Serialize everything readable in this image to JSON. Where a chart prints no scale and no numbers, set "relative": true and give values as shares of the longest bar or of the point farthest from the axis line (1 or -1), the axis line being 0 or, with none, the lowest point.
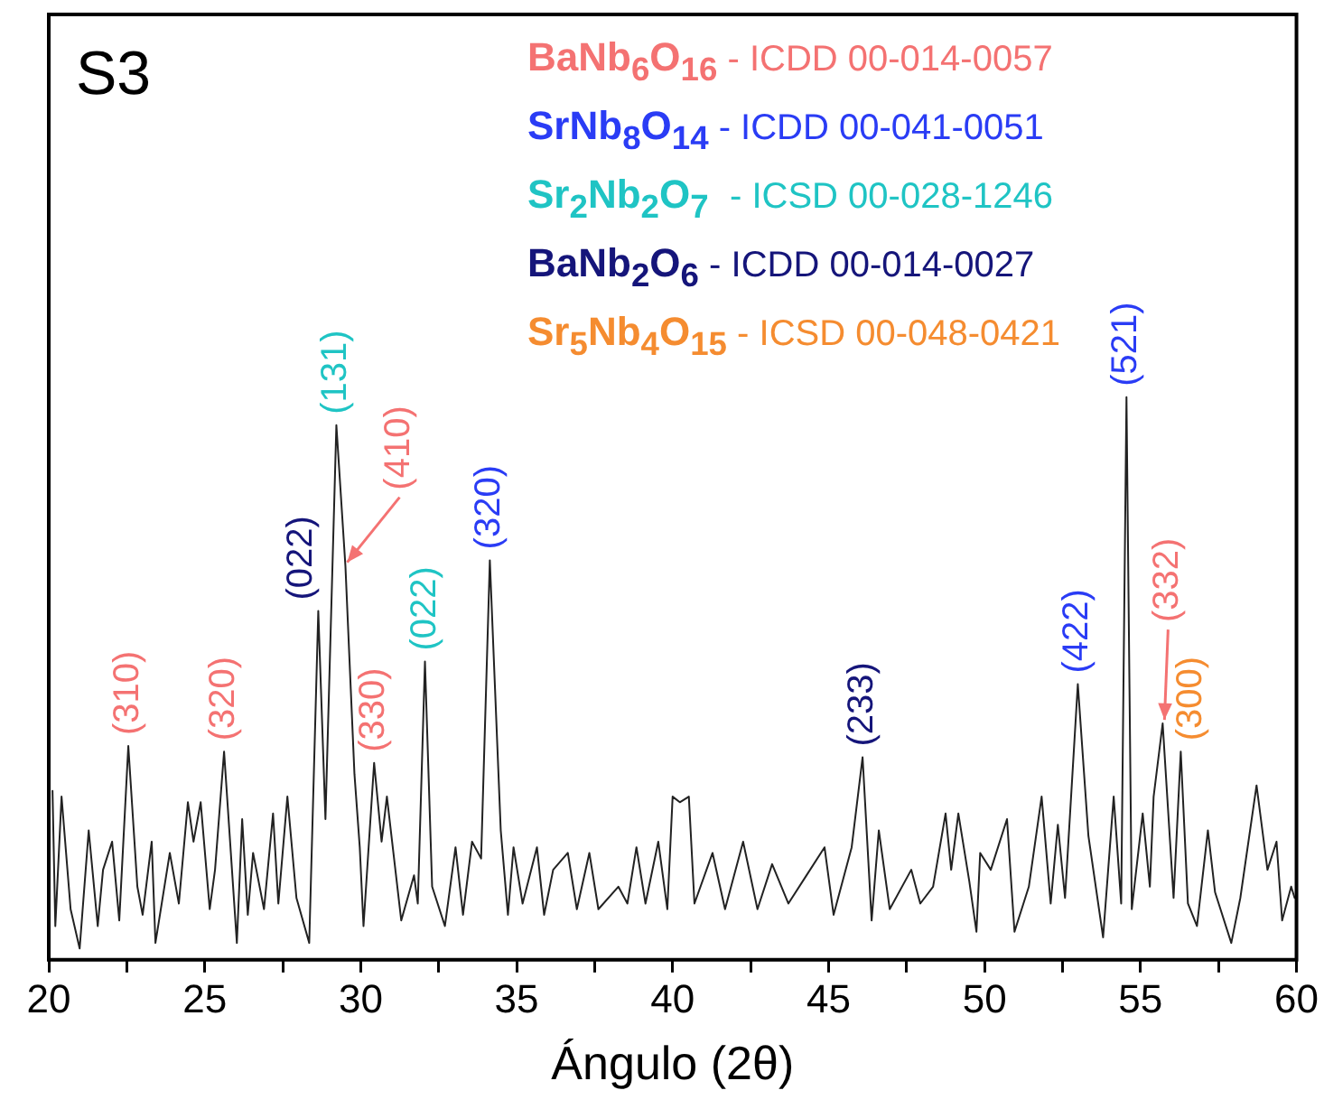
{
  "chart_data": {
    "type": "line",
    "relative": true,
    "xlabel": "Ángulo (2θ)",
    "color": "#222222",
    "marker": "none",
    "grid": false,
    "legend": false,
    "tick_labels": "x",
    "xlim": [
      20,
      60
    ],
    "xticks": [
      20,
      {
        "value": 22.5,
        "label": null
      },
      25,
      {
        "value": 27.5,
        "label": null
      },
      30,
      {
        "value": 32.5,
        "label": null
      },
      35,
      {
        "value": 37.5,
        "label": null
      },
      40,
      {
        "value": 42.5,
        "label": null
      },
      45,
      {
        "value": 47.5,
        "label": null
      },
      50,
      {
        "value": 52.5,
        "label": null
      },
      55,
      {
        "value": 57.5,
        "label": null
      },
      60
    ],
    "x": [
      20.12,
      20.21,
      20.41,
      20.7,
      20.99,
      21.28,
      21.57,
      21.74,
      22.03,
      22.26,
      22.55,
      22.84,
      23.01,
      23.3,
      23.42,
      23.88,
      24.17,
      24.46,
      24.64,
      24.87,
      25.16,
      25.33,
      25.62,
      26.03,
      26.2,
      26.38,
      26.55,
      26.9,
      27.19,
      27.36,
      27.65,
      27.94,
      28.35,
      28.64,
      28.87,
      29.22,
      29.51,
      29.8,
      29.97,
      30.09,
      30.43,
      30.67,
      30.84,
      31.3,
      31.71,
      31.83,
      32.06,
      32.29,
      32.7,
      33.04,
      33.28,
      33.57,
      33.86,
      34.14,
      34.49,
      34.72,
      34.9,
      35.19,
      35.65,
      35.88,
      36.17,
      36.64,
      36.93,
      37.33,
      37.62,
      38.26,
      38.55,
      38.84,
      39.13,
      39.54,
      39.83,
      40.0,
      40.23,
      40.52,
      40.7,
      41.28,
      41.68,
      42.26,
      42.72,
      43.19,
      43.71,
      44.29,
      44.87,
      45.16,
      45.74,
      46.09,
      46.38,
      46.61,
      46.96,
      47.65,
      47.94,
      48.35,
      48.75,
      48.93,
      49.16,
      49.51,
      49.74,
      49.86,
      50.2,
      50.72,
      50.96,
      51.42,
      51.83,
      52.12,
      52.35,
      52.58,
      52.99,
      53.33,
      53.8,
      54.14,
      54.38,
      54.55,
      54.72,
      55.07,
      55.3,
      55.42,
      55.71,
      56.06,
      56.29,
      56.52,
      56.81,
      57.16,
      57.39,
      57.91,
      58.2,
      58.72,
      59.07,
      59.36,
      59.54,
      59.83,
      59.94
    ],
    "values": [
      0.3,
      0.06,
      0.29,
      0.09,
      0.02,
      0.23,
      0.06,
      0.16,
      0.21,
      0.07,
      0.38,
      0.13,
      0.08,
      0.21,
      0.03,
      0.19,
      0.1,
      0.28,
      0.21,
      0.28,
      0.09,
      0.16,
      0.37,
      0.03,
      0.25,
      0.08,
      0.19,
      0.09,
      0.26,
      0.1,
      0.29,
      0.11,
      0.03,
      0.62,
      0.25,
      0.95,
      0.7,
      0.33,
      0.2,
      0.06,
      0.35,
      0.21,
      0.29,
      0.07,
      0.15,
      0.1,
      0.53,
      0.13,
      0.06,
      0.2,
      0.08,
      0.21,
      0.18,
      0.71,
      0.23,
      0.08,
      0.2,
      0.1,
      0.2,
      0.08,
      0.16,
      0.19,
      0.09,
      0.19,
      0.09,
      0.13,
      0.1,
      0.2,
      0.1,
      0.21,
      0.09,
      0.29,
      0.28,
      0.29,
      0.1,
      0.19,
      0.09,
      0.21,
      0.09,
      0.17,
      0.1,
      0.15,
      0.2,
      0.08,
      0.2,
      0.36,
      0.07,
      0.23,
      0.09,
      0.16,
      0.1,
      0.13,
      0.26,
      0.16,
      0.26,
      0.14,
      0.05,
      0.19,
      0.16,
      0.25,
      0.05,
      0.13,
      0.29,
      0.1,
      0.24,
      0.11,
      0.49,
      0.22,
      0.04,
      0.29,
      0.1,
      1.0,
      0.09,
      0.26,
      0.13,
      0.29,
      0.42,
      0.11,
      0.37,
      0.1,
      0.06,
      0.23,
      0.12,
      0.03,
      0.11,
      0.31,
      0.16,
      0.21,
      0.07,
      0.13,
      0.11
    ],
    "annotations": [
      "S3",
      "BaNb$_{6}$O$_{16}$ - ICDD 00-014-0057",
      "SrNb$_{8}$O$_{14}$ - ICDD 00-041-0051",
      "Sr$_{2}$Nb$_{2}$O$_{7}$  - ICSD 00-028-1246",
      "BaNb$_{2}$O$_{6}$ - ICDD 00-014-0027",
      "Sr$_{5}$Nb$_{4}$O$_{15}$ - ICSD 00-048-0421",
      {
        "text": "(310)",
        "x": 22.55,
        "y": 0.38
      },
      {
        "text": "(320)",
        "x": 25.62,
        "y": 0.37
      },
      {
        "text": "(022)",
        "x": 28.64,
        "y": 0.62
      },
      {
        "text": "(131)",
        "x": 29.22,
        "y": 0.95
      },
      {
        "text": "(410)",
        "x": 29.51,
        "y": 0.7
      },
      {
        "text": "(330)",
        "x": 30.43,
        "y": 0.35
      },
      {
        "text": "(022)",
        "x": 32.06,
        "y": 0.53
      },
      {
        "text": "(320)",
        "x": 34.14,
        "y": 0.71
      },
      {
        "text": "(233)",
        "x": 46.09,
        "y": 0.36
      },
      {
        "text": "(422)",
        "x": 52.99,
        "y": 0.49
      },
      {
        "text": "(521)",
        "x": 54.55,
        "y": 1.0
      },
      {
        "text": "(332)",
        "x": 55.71,
        "y": 0.42
      },
      {
        "text": "(300)",
        "x": 56.29,
        "y": 0.37
      }
    ]
  }
}
